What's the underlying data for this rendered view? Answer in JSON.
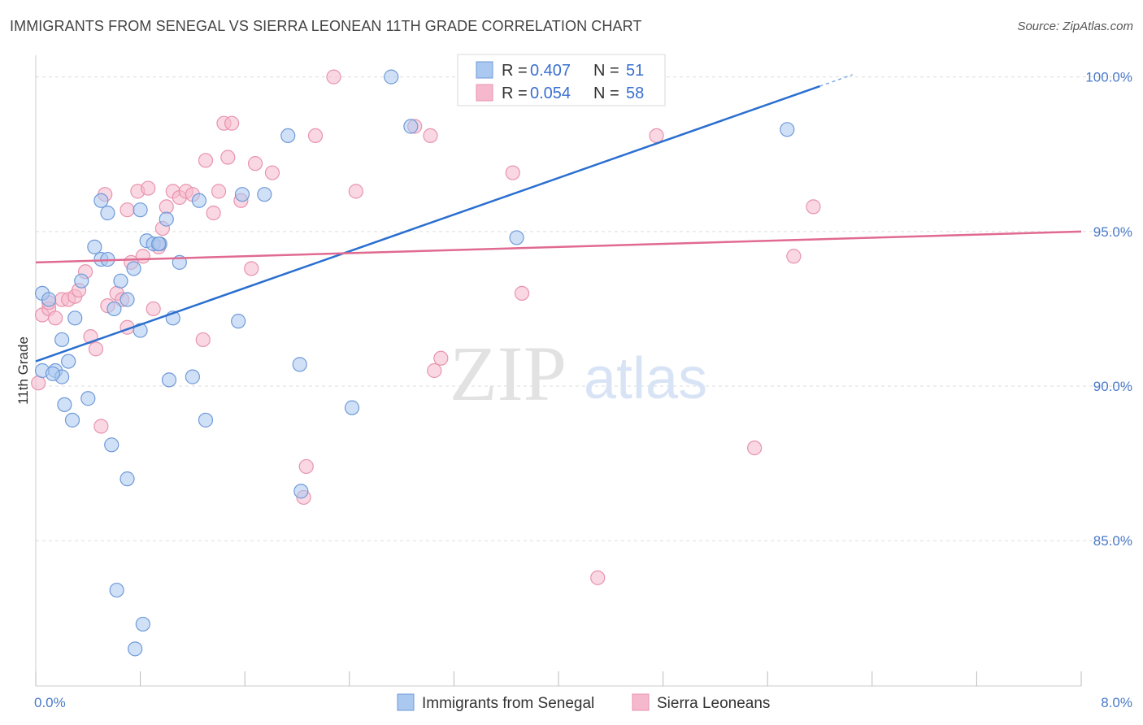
{
  "title": "IMMIGRANTS FROM SENEGAL VS SIERRA LEONEAN 11TH GRADE CORRELATION CHART",
  "source": "Source: ZipAtlas.com",
  "watermark": {
    "zip": "ZIP",
    "atlas": "atlas"
  },
  "colors": {
    "blue_fill": "#aac8f0",
    "blue_stroke": "#6f9ad8",
    "blue_line": "#2a6fd0",
    "pink_fill": "#f6b8cc",
    "pink_stroke": "#e893ad",
    "pink_line": "#e06a90",
    "grid": "#dddddd",
    "tick_label": "#4a7ac8"
  },
  "chart_data": {
    "type": "scatter",
    "title": "IMMIGRANTS FROM SENEGAL VS SIERRA LEONEAN 11TH GRADE CORRELATION CHART",
    "xlabel": "",
    "ylabel": "11th Grade",
    "xlim": [
      0.0,
      8.0
    ],
    "ylim": [
      80.3,
      100.7
    ],
    "x_tick_labels": [
      {
        "value": 0.0,
        "label": "0.0%"
      },
      {
        "value": 8.0,
        "label": "8.0%"
      }
    ],
    "y_tick_labels": [
      {
        "value": 100.0,
        "label": "100.0%"
      },
      {
        "value": 95.0,
        "label": "95.0%"
      },
      {
        "value": 90.0,
        "label": "90.0%"
      },
      {
        "value": 85.0,
        "label": "85.0%"
      }
    ],
    "grid": true,
    "legend_placement": "top-center",
    "legend": [
      {
        "r_label": "R =",
        "r_value": "0.407",
        "n_label": "N =",
        "n_value": "51"
      },
      {
        "r_label": "R =",
        "r_value": "0.054",
        "n_label": "N =",
        "n_value": "58"
      }
    ],
    "series": [
      {
        "name": "Immigrants from Senegal",
        "color": "#aac8f0",
        "trend": {
          "x": [
            0.0,
            6.0
          ],
          "y": [
            90.8,
            99.7
          ]
        },
        "points": [
          [
            0.05,
            93.0
          ],
          [
            0.1,
            92.8
          ],
          [
            0.05,
            90.5
          ],
          [
            0.15,
            90.5
          ],
          [
            0.2,
            90.3
          ],
          [
            0.2,
            91.5
          ],
          [
            0.3,
            92.2
          ],
          [
            0.25,
            90.8
          ],
          [
            0.22,
            89.4
          ],
          [
            0.28,
            88.9
          ],
          [
            0.4,
            89.6
          ],
          [
            0.35,
            93.4
          ],
          [
            0.45,
            94.5
          ],
          [
            0.5,
            94.1
          ],
          [
            0.55,
            94.1
          ],
          [
            0.6,
            92.5
          ],
          [
            0.65,
            93.4
          ],
          [
            0.7,
            92.8
          ],
          [
            0.75,
            93.8
          ],
          [
            0.8,
            91.8
          ],
          [
            0.85,
            94.7
          ],
          [
            0.9,
            94.6
          ],
          [
            0.95,
            94.6
          ],
          [
            1.0,
            95.4
          ],
          [
            1.05,
            92.2
          ],
          [
            1.1,
            94.0
          ],
          [
            1.2,
            90.3
          ],
          [
            1.25,
            96.0
          ],
          [
            1.3,
            88.9
          ],
          [
            0.55,
            95.6
          ],
          [
            0.5,
            96.0
          ],
          [
            0.8,
            95.7
          ],
          [
            0.58,
            88.1
          ],
          [
            0.7,
            87.0
          ],
          [
            0.62,
            83.4
          ],
          [
            0.82,
            82.3
          ],
          [
            0.76,
            81.5
          ],
          [
            1.02,
            90.2
          ],
          [
            1.55,
            92.1
          ],
          [
            1.58,
            96.2
          ],
          [
            1.75,
            96.2
          ],
          [
            1.93,
            98.1
          ],
          [
            2.02,
            90.7
          ],
          [
            2.03,
            86.6
          ],
          [
            2.42,
            89.3
          ],
          [
            2.72,
            100.0
          ],
          [
            2.87,
            98.4
          ],
          [
            3.68,
            94.8
          ],
          [
            5.75,
            98.3
          ],
          [
            0.94,
            94.6
          ],
          [
            0.13,
            90.4
          ]
        ]
      },
      {
        "name": "Sierra Leoneans",
        "color": "#f6b8cc",
        "trend": {
          "x": [
            0.0,
            8.0
          ],
          "y": [
            94.0,
            95.0
          ]
        },
        "points": [
          [
            0.02,
            90.1
          ],
          [
            0.05,
            92.3
          ],
          [
            0.1,
            92.5
          ],
          [
            0.15,
            92.2
          ],
          [
            0.2,
            92.8
          ],
          [
            0.25,
            92.8
          ],
          [
            0.3,
            92.9
          ],
          [
            0.33,
            93.1
          ],
          [
            0.38,
            93.7
          ],
          [
            0.42,
            91.6
          ],
          [
            0.46,
            91.2
          ],
          [
            0.5,
            88.7
          ],
          [
            0.53,
            96.2
          ],
          [
            0.55,
            92.6
          ],
          [
            0.62,
            93.0
          ],
          [
            0.66,
            92.8
          ],
          [
            0.7,
            91.9
          ],
          [
            0.73,
            94.0
          ],
          [
            0.78,
            96.3
          ],
          [
            0.82,
            94.2
          ],
          [
            0.86,
            96.4
          ],
          [
            0.9,
            92.5
          ],
          [
            0.94,
            94.5
          ],
          [
            0.97,
            95.1
          ],
          [
            1.0,
            95.8
          ],
          [
            1.05,
            96.3
          ],
          [
            1.1,
            96.1
          ],
          [
            1.15,
            96.3
          ],
          [
            1.2,
            96.2
          ],
          [
            1.28,
            91.5
          ],
          [
            1.3,
            97.3
          ],
          [
            1.36,
            95.6
          ],
          [
            1.4,
            96.3
          ],
          [
            1.44,
            98.5
          ],
          [
            1.47,
            97.4
          ],
          [
            1.5,
            98.5
          ],
          [
            1.57,
            96.0
          ],
          [
            1.65,
            93.8
          ],
          [
            1.68,
            97.2
          ],
          [
            1.81,
            96.9
          ],
          [
            2.05,
            86.4
          ],
          [
            2.07,
            87.4
          ],
          [
            2.14,
            98.1
          ],
          [
            2.28,
            100.0
          ],
          [
            2.45,
            96.3
          ],
          [
            2.9,
            98.4
          ],
          [
            3.02,
            98.1
          ],
          [
            3.05,
            90.5
          ],
          [
            3.1,
            90.9
          ],
          [
            3.65,
            96.9
          ],
          [
            3.72,
            93.0
          ],
          [
            4.3,
            83.8
          ],
          [
            4.75,
            98.1
          ],
          [
            5.5,
            88.0
          ],
          [
            5.8,
            94.2
          ],
          [
            5.95,
            95.8
          ],
          [
            0.7,
            95.7
          ],
          [
            0.1,
            92.7
          ]
        ]
      }
    ]
  }
}
